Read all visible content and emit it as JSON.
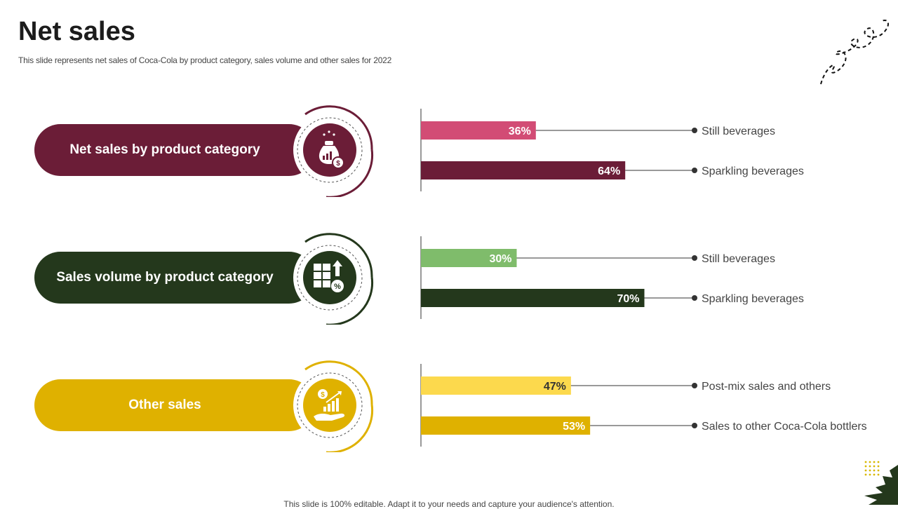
{
  "slide": {
    "title": "Net sales",
    "subtitle": "This slide represents net sales of Coca-Cola by product category,  sales volume and other sales for 2022",
    "footer": "This slide is 100% editable. Adapt it to your needs and capture your audience's attention."
  },
  "rows": [
    {
      "label": "Net sales by product category",
      "color": "#6b1d37",
      "icon": "money-bag-icon"
    },
    {
      "label": "Sales volume by product category",
      "color": "#24381c",
      "icon": "boxes-growth-icon"
    },
    {
      "label": "Other sales",
      "color": "#dfb100",
      "icon": "hand-growth-icon"
    }
  ],
  "chart_data": [
    {
      "type": "bar",
      "orientation": "horizontal",
      "title": "Net sales by product category",
      "categories": [
        "Still beverages",
        "Sparkling beverages"
      ],
      "values": [
        36,
        64
      ],
      "unit": "%",
      "colors": [
        "#d24c75",
        "#6b1d37"
      ],
      "label_colors": [
        "#ffffff",
        "#ffffff"
      ]
    },
    {
      "type": "bar",
      "orientation": "horizontal",
      "title": "Sales volume by product category",
      "categories": [
        "Still beverages",
        "Sparkling beverages"
      ],
      "values": [
        30,
        70
      ],
      "unit": "%",
      "colors": [
        "#7fbc6b",
        "#24381c"
      ],
      "label_colors": [
        "#ffffff",
        "#ffffff"
      ]
    },
    {
      "type": "bar",
      "orientation": "horizontal",
      "title": "Other sales",
      "categories": [
        "Post-mix sales and others",
        "Sales to other Coca-Cola bottlers"
      ],
      "values": [
        47,
        53
      ],
      "unit": "%",
      "colors": [
        "#fcd94d",
        "#dfb100"
      ],
      "label_colors": [
        "#333333",
        "#ffffff"
      ]
    }
  ]
}
